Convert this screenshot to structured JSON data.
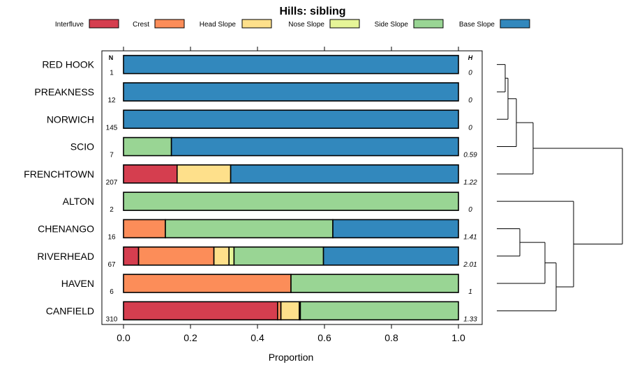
{
  "chart_data": {
    "type": "bar",
    "stacked": true,
    "orientation": "horizontal",
    "title": "Hills: sibling",
    "xlabel": "Proportion",
    "ylabel": "",
    "xlim": [
      0,
      1
    ],
    "x_ticks": [
      "0.0",
      "0.2",
      "0.4",
      "0.6",
      "0.8",
      "1.0"
    ],
    "legend_position": "top",
    "n_header": "N",
    "h_header": "H",
    "components": [
      {
        "name": "Interfluve",
        "color": "#d53e4f"
      },
      {
        "name": "Crest",
        "color": "#fc8d59"
      },
      {
        "name": "Head Slope",
        "color": "#fee08b"
      },
      {
        "name": "Nose Slope",
        "color": "#e6f598"
      },
      {
        "name": "Side Slope",
        "color": "#99d594"
      },
      {
        "name": "Base Slope",
        "color": "#3288bd"
      }
    ],
    "categories": [
      "RED HOOK",
      "PREAKNESS",
      "NORWICH",
      "SCIO",
      "FRENCHTOWN",
      "ALTON",
      "CHENANGO",
      "RIVERHEAD",
      "HAVEN",
      "CANFIELD"
    ],
    "n_labels": [
      "1",
      "12",
      "145",
      "7",
      "207",
      "2",
      "16",
      "67",
      "6",
      "310"
    ],
    "h_labels": [
      "0",
      "0",
      "0",
      "0.59",
      "1.22",
      "0",
      "1.41",
      "2.01",
      "1",
      "1.33"
    ],
    "series": [
      {
        "name": "Interfluve",
        "values": [
          0,
          0,
          0,
          0,
          0.16,
          0,
          0,
          0.045,
          0,
          0.46
        ]
      },
      {
        "name": "Crest",
        "values": [
          0,
          0,
          0,
          0,
          0,
          0,
          0.125,
          0.225,
          0.5,
          0.01
        ]
      },
      {
        "name": "Head Slope",
        "values": [
          0,
          0,
          0,
          0,
          0.16,
          0,
          0,
          0.045,
          0,
          0.055
        ]
      },
      {
        "name": "Nose Slope",
        "values": [
          0,
          0,
          0,
          0,
          0,
          0,
          0,
          0.015,
          0,
          0.003
        ]
      },
      {
        "name": "Side Slope",
        "values": [
          0,
          0,
          0,
          0.143,
          0,
          1,
          0.5,
          0.267,
          0.5,
          0.472
        ]
      },
      {
        "name": "Base Slope",
        "values": [
          1,
          1,
          1,
          0.857,
          0.68,
          0,
          0.375,
          0.403,
          0,
          0
        ]
      }
    ]
  }
}
